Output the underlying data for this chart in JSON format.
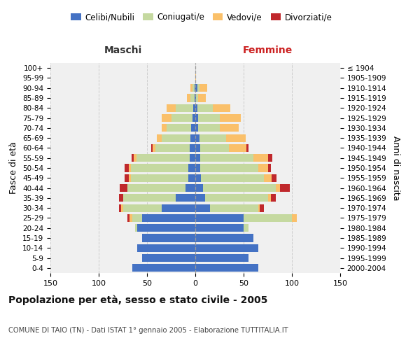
{
  "age_groups": [
    "100+",
    "95-99",
    "90-94",
    "85-89",
    "80-84",
    "75-79",
    "70-74",
    "65-69",
    "60-64",
    "55-59",
    "50-54",
    "45-49",
    "40-44",
    "35-39",
    "30-34",
    "25-29",
    "20-24",
    "15-19",
    "10-14",
    "5-9",
    "0-4"
  ],
  "birth_years": [
    "≤ 1904",
    "1905-1909",
    "1910-1914",
    "1915-1919",
    "1920-1924",
    "1925-1929",
    "1930-1934",
    "1935-1939",
    "1940-1944",
    "1945-1949",
    "1950-1954",
    "1955-1959",
    "1960-1964",
    "1965-1969",
    "1970-1974",
    "1975-1979",
    "1980-1984",
    "1985-1989",
    "1990-1994",
    "1995-1999",
    "2000-2004"
  ],
  "males_celibi": [
    0,
    0,
    1,
    1,
    2,
    3,
    4,
    5,
    6,
    6,
    7,
    7,
    10,
    20,
    35,
    55,
    60,
    55,
    60,
    55,
    65
  ],
  "males_coniugati": [
    0,
    0,
    2,
    4,
    18,
    22,
    26,
    30,
    35,
    55,
    60,
    60,
    60,
    55,
    40,
    10,
    2,
    0,
    0,
    0,
    0
  ],
  "males_vedovi": [
    0,
    0,
    2,
    4,
    10,
    10,
    5,
    5,
    3,
    3,
    2,
    2,
    0,
    0,
    2,
    3,
    0,
    0,
    0,
    0,
    0
  ],
  "males_divorziati": [
    0,
    0,
    0,
    0,
    0,
    0,
    0,
    0,
    2,
    2,
    4,
    4,
    8,
    4,
    2,
    2,
    0,
    0,
    0,
    0,
    0
  ],
  "females_nubili": [
    0,
    0,
    2,
    1,
    2,
    3,
    3,
    4,
    5,
    5,
    5,
    6,
    8,
    10,
    15,
    50,
    50,
    60,
    65,
    55,
    65
  ],
  "females_coniugate": [
    0,
    0,
    2,
    2,
    16,
    22,
    22,
    28,
    30,
    55,
    60,
    65,
    75,
    65,
    50,
    50,
    5,
    0,
    0,
    0,
    0
  ],
  "females_vedove": [
    0,
    1,
    8,
    8,
    18,
    22,
    20,
    20,
    18,
    15,
    10,
    8,
    5,
    3,
    2,
    5,
    0,
    0,
    0,
    0,
    0
  ],
  "females_divorziate": [
    0,
    0,
    0,
    0,
    0,
    0,
    0,
    0,
    2,
    5,
    3,
    5,
    10,
    5,
    4,
    0,
    0,
    0,
    0,
    0,
    0
  ],
  "color_celibi": "#4472C4",
  "color_coniugati": "#C5D9A0",
  "color_vedovi": "#FAC06A",
  "color_divorziati": "#C0282C",
  "xlim": 150,
  "title": "Popolazione per età, sesso e stato civile - 2005",
  "subtitle": "COMUNE DI TAIO (TN) - Dati ISTAT 1° gennaio 2005 - Elaborazione TUTTITALIA.IT",
  "ylabel_left": "Fasce di età",
  "ylabel_right": "Anni di nascita",
  "label_maschi": "Maschi",
  "label_femmine": "Femmine",
  "legend_labels": [
    "Celibi/Nubili",
    "Coniugati/e",
    "Vedovi/e",
    "Divorziati/e"
  ],
  "bg_color": "#f0f0f0",
  "grid_color": "#cccccc"
}
